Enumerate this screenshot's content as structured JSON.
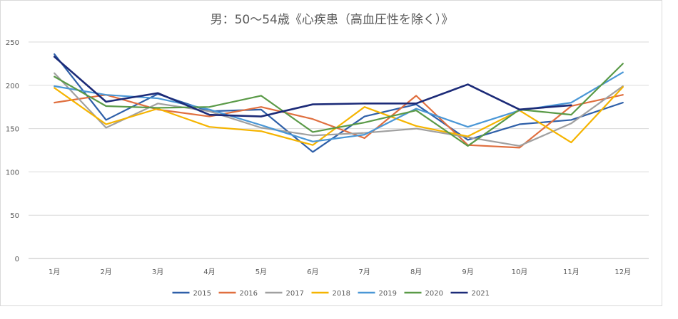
{
  "chart_data": {
    "type": "line",
    "title": "男：50～54歳《心疾患（高血圧性を除く）》",
    "xlabel": "",
    "ylabel": "",
    "ylim": [
      0,
      250
    ],
    "yticks": [
      0,
      50,
      100,
      150,
      200,
      250
    ],
    "grid": "horizontal",
    "legend_position": "bottom",
    "categories": [
      "1月",
      "2月",
      "3月",
      "4月",
      "5月",
      "6月",
      "7月",
      "8月",
      "9月",
      "10月",
      "11月",
      "12月"
    ],
    "series": [
      {
        "name": "2015",
        "color": "#2e5fa8",
        "values": [
          236,
          160,
          190,
          170,
          172,
          123,
          164,
          178,
          137,
          155,
          160,
          180
        ]
      },
      {
        "name": "2016",
        "color": "#e06f3f",
        "values": [
          180,
          189,
          172,
          164,
          175,
          161,
          139,
          188,
          131,
          128,
          176,
          189
        ]
      },
      {
        "name": "2017",
        "color": "#a0a0a0",
        "values": [
          214,
          151,
          179,
          170,
          151,
          142,
          145,
          150,
          140,
          130,
          156,
          199
        ]
      },
      {
        "name": "2018",
        "color": "#f5b400",
        "values": [
          197,
          155,
          173,
          152,
          147,
          131,
          175,
          153,
          141,
          171,
          134,
          198
        ]
      },
      {
        "name": "2019",
        "color": "#4a97d6",
        "values": [
          199,
          189,
          185,
          172,
          154,
          135,
          143,
          173,
          152,
          171,
          180,
          215
        ]
      },
      {
        "name": "2020",
        "color": "#5a9a47",
        "values": [
          210,
          176,
          174,
          175,
          188,
          146,
          157,
          171,
          130,
          172,
          166,
          225
        ]
      },
      {
        "name": "2021",
        "color": "#1c2b78",
        "values": [
          233,
          181,
          191,
          166,
          164,
          178,
          179,
          179,
          201,
          172,
          177,
          null
        ]
      }
    ]
  }
}
